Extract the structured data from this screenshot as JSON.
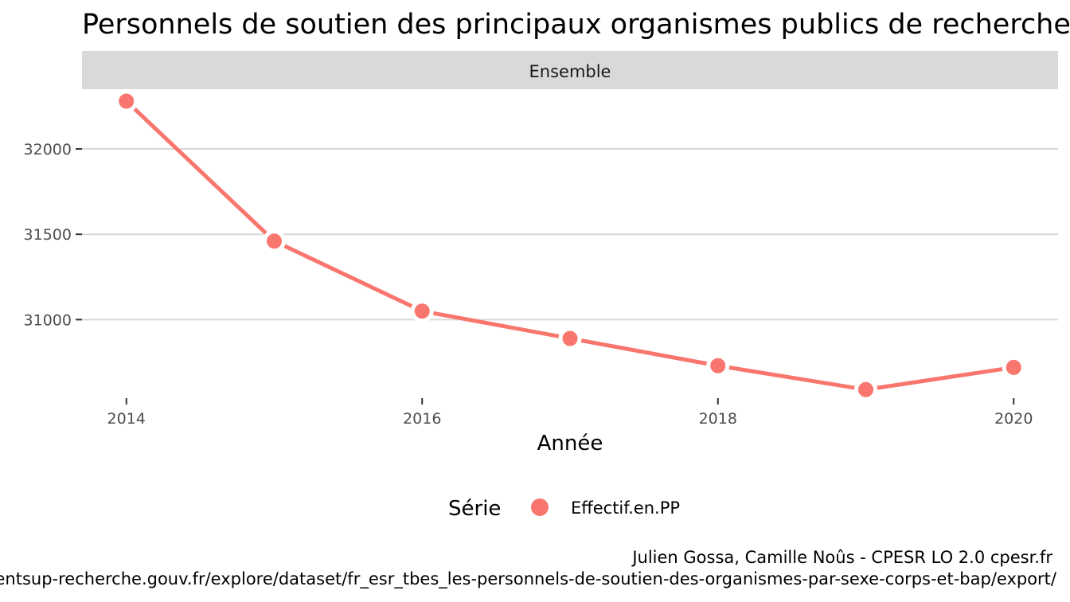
{
  "chart_data": {
    "type": "line",
    "title": "Personnels de soutien des principaux organismes publics de recherche",
    "facet": "Ensemble",
    "xlabel": "Année",
    "ylabel": "",
    "x": [
      2014,
      2015,
      2016,
      2017,
      2018,
      2019,
      2020
    ],
    "x_ticks": [
      2014,
      2016,
      2018,
      2020
    ],
    "y_ticks": [
      31000,
      31500,
      32000
    ],
    "xlim": [
      2013.7,
      2020.3
    ],
    "ylim": [
      30540,
      32350
    ],
    "grid": true,
    "legend": {
      "title": "Série",
      "position": "bottom"
    },
    "series": [
      {
        "name": "Effectif.en.PP",
        "color": "#f8766d",
        "values": [
          32280,
          31460,
          31050,
          30890,
          30730,
          30590,
          30720
        ]
      }
    ],
    "caption_line1": "Julien Gossa, Camille Noûs - CPESR LO 2.0 cpesr.fr",
    "caption_line2": "https://data.enseignementsup-recherche.gouv.fr/explore/dataset/fr_esr_tbes_les-personnels-de-soutien-des-organismes-par-sexe-corps-et-bap/export/"
  }
}
